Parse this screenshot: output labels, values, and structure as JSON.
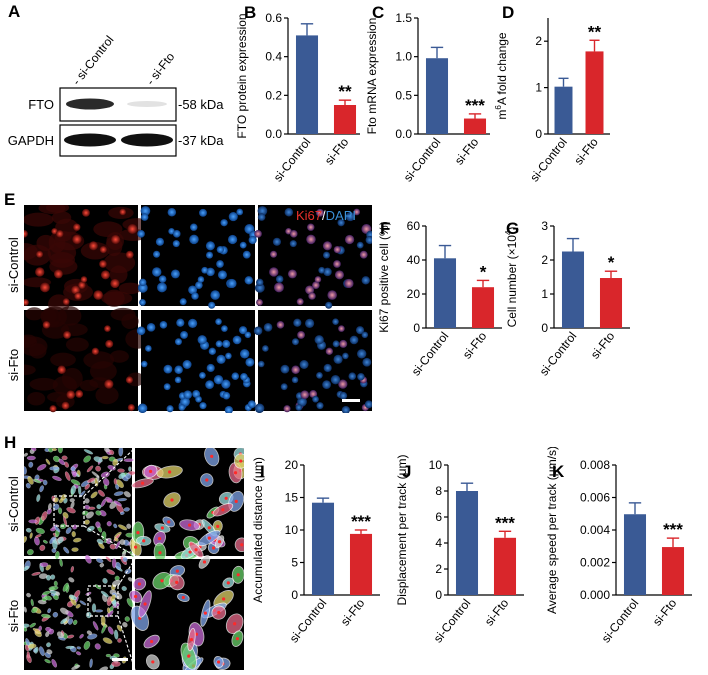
{
  "panels": {
    "A": {
      "letter": "A",
      "lanes": [
        "- si-Control",
        "- si-Fto"
      ],
      "rows": [
        {
          "protein": "FTO",
          "size": "-58 kDa"
        },
        {
          "protein": "GAPDH",
          "size": "-37 kDa"
        }
      ]
    },
    "E": {
      "letter": "E",
      "rows": [
        "si-Control",
        "si-Fto"
      ],
      "stain_red": "Ki67",
      "stain_sep": "/",
      "stain_blue": "DAPI"
    },
    "H": {
      "letter": "H",
      "rows": [
        "si-Control",
        "si-Fto"
      ]
    }
  },
  "colors": {
    "control": "#3a5a95",
    "fto": "#d9262b",
    "ki67_label": "#e8302a",
    "dapi_label": "#3a8fd6"
  },
  "chart_data": [
    {
      "id": "B",
      "type": "bar",
      "letter": "B",
      "ylabel": "FTO protein expression",
      "categories": [
        "si-Control",
        "si-Fto"
      ],
      "values": [
        0.51,
        0.15
      ],
      "errors": [
        0.06,
        0.025
      ],
      "ylim": [
        0,
        0.6
      ],
      "ticks": [
        "0.0",
        "0.2",
        "0.4",
        "0.6"
      ],
      "significance": "**"
    },
    {
      "id": "C",
      "type": "bar",
      "letter": "C",
      "ylabel": "Fto mRNA expression",
      "categories": [
        "si-Control",
        "si-Fto"
      ],
      "values": [
        0.98,
        0.2
      ],
      "errors": [
        0.14,
        0.06
      ],
      "ylim": [
        0,
        1.5
      ],
      "ticks": [
        "0.0",
        "0.5",
        "1.0",
        "1.5"
      ],
      "significance": "***"
    },
    {
      "id": "D",
      "type": "bar",
      "letter": "D",
      "ylabel": "m6A fold change",
      "ylabel_parts": [
        "m",
        "6",
        "A fold change"
      ],
      "categories": [
        "si-Control",
        "si-Fto"
      ],
      "values": [
        1.02,
        1.78
      ],
      "errors": [
        0.18,
        0.24
      ],
      "ylim": [
        0,
        2.5
      ],
      "ticks": [
        "0",
        "1",
        "2"
      ],
      "significance": "**"
    },
    {
      "id": "F",
      "type": "bar",
      "letter": "F",
      "ylabel": "Ki67 positive cell (%)",
      "categories": [
        "si-Control",
        "si-Fto"
      ],
      "values": [
        41,
        24
      ],
      "errors": [
        7.5,
        4
      ],
      "ylim": [
        0,
        60
      ],
      "ticks": [
        "0",
        "20",
        "40",
        "60"
      ],
      "significance": "*"
    },
    {
      "id": "G",
      "type": "bar",
      "letter": "G",
      "ylabel": "Cell number  (×10",
      "ylabel_sup": "4",
      "ylabel_end": ")",
      "categories": [
        "si-Control",
        "si-Fto"
      ],
      "values": [
        2.25,
        1.47
      ],
      "errors": [
        0.38,
        0.2
      ],
      "ylim": [
        0,
        3
      ],
      "ticks": [
        "0",
        "1",
        "2",
        "3"
      ],
      "significance": "*"
    },
    {
      "id": "I",
      "type": "bar",
      "letter": "I",
      "ylabel": "Accumulated distance (μm)",
      "categories": [
        "si-Control",
        "si-Fto"
      ],
      "values": [
        14.2,
        9.4
      ],
      "errors": [
        0.7,
        0.6
      ],
      "ylim": [
        0,
        20
      ],
      "ticks": [
        "0",
        "5",
        "10",
        "15",
        "20"
      ],
      "significance": "***"
    },
    {
      "id": "J",
      "type": "bar",
      "letter": "J",
      "ylabel": "Displacement per track (μm)",
      "categories": [
        "si-Control",
        "si-Fto"
      ],
      "values": [
        8.0,
        4.4
      ],
      "errors": [
        0.6,
        0.5
      ],
      "ylim": [
        0,
        10
      ],
      "ticks": [
        "0",
        "2",
        "4",
        "6",
        "8",
        "10"
      ],
      "significance": "***"
    },
    {
      "id": "K",
      "type": "bar",
      "letter": "K",
      "ylabel": "Average speed per track (μm/s)",
      "categories": [
        "si-Control",
        "si-Fto"
      ],
      "values": [
        0.00497,
        0.00295
      ],
      "errors": [
        0.0007,
        0.00055
      ],
      "ylim": [
        0,
        0.008
      ],
      "ticks": [
        "0.000",
        "0.002",
        "0.004",
        "0.006",
        "0.008"
      ],
      "significance": "***"
    }
  ]
}
